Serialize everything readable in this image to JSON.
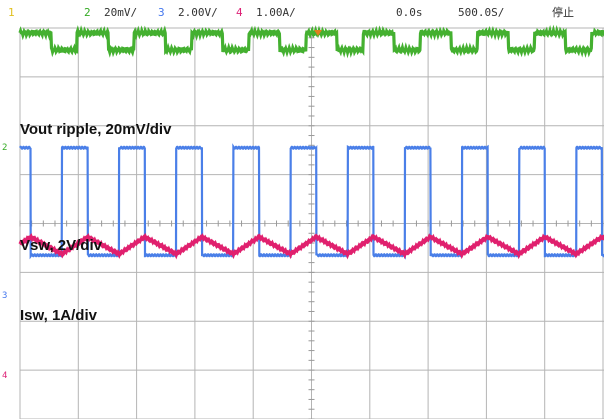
{
  "header": {
    "ch1": {
      "num": "1",
      "scale": "",
      "color": "#e0c020"
    },
    "ch2": {
      "num": "2",
      "scale": "20mV/",
      "color": "#33aa22"
    },
    "ch3": {
      "num": "3",
      "scale": "2.00V/",
      "color": "#4477ee"
    },
    "ch4": {
      "num": "4",
      "scale": "1.00A/",
      "color": "#dd2277"
    },
    "delay": "0.0s",
    "timebase": "500.0S/",
    "mode": "停止"
  },
  "markers": {
    "ch2": "2",
    "ch3": "3",
    "ch4": "4"
  },
  "annotations": {
    "vout": "Vout ripple, 20mV/div",
    "vsw": "Vsw, 2V/div",
    "isw": "Isw, 1A/div"
  },
  "colors": {
    "grid": "#b4b4b4",
    "background": "#ffffff",
    "vout": "#44b030",
    "vsw": "#4a7fe8",
    "isw": "#e0206e",
    "trigger": "#e08020"
  },
  "chart_data": {
    "type": "line",
    "grid": {
      "divisions_x": 10,
      "divisions_y": 8,
      "visible": true
    },
    "series": [
      {
        "name": "Vout ripple, 20mV/div",
        "channel": 2,
        "unit": "div",
        "period_div": 0.98,
        "phase_div": 0.0,
        "low": 3.55,
        "high": 3.9
      },
      {
        "name": "Vsw, 2V/div",
        "channel": 3,
        "unit": "div",
        "period_div": 0.98,
        "phase_div": 0.72,
        "duty": 0.45,
        "low": -0.65,
        "high": 1.55
      },
      {
        "name": "Isw, 1A/div",
        "channel": 4,
        "unit": "div",
        "period_div": 0.98,
        "phase_div": 0.72,
        "duty": 0.45,
        "peak": 0.35,
        "valley": -0.35,
        "center": 0.45
      }
    ]
  }
}
